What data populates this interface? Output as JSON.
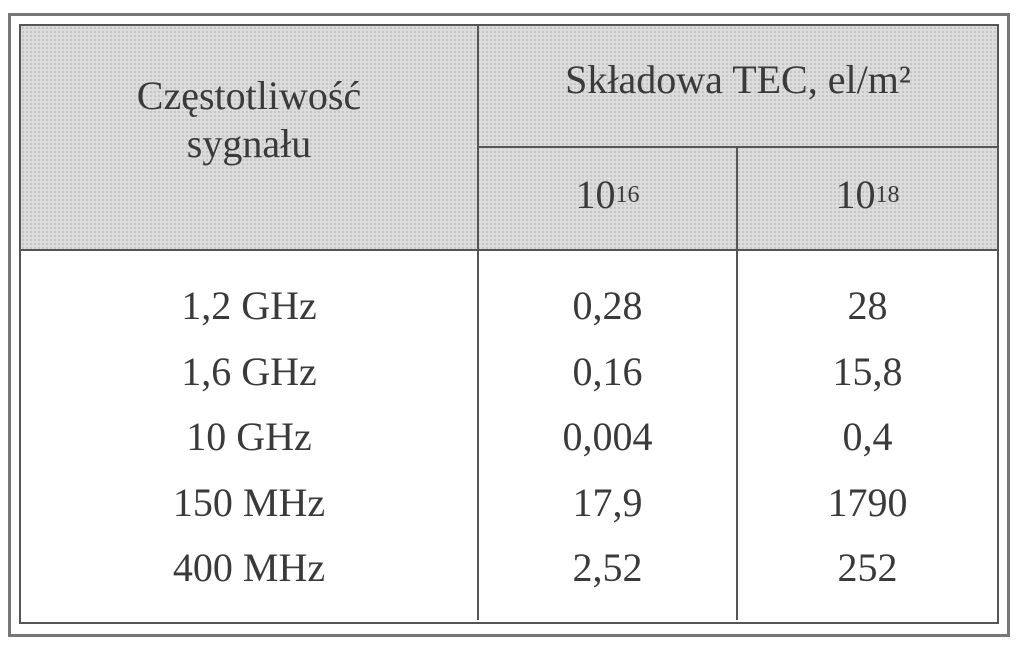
{
  "header": {
    "frequency": [
      "Częstotliwość",
      "sygnału"
    ],
    "group": "Składowa TEC, el/m²",
    "columns": [
      {
        "base": "10",
        "exponent": "16"
      },
      {
        "base": "10",
        "exponent": "18"
      }
    ]
  },
  "rows": [
    [
      "1,2 GHz",
      "0,28",
      "28"
    ],
    [
      "1,6 GHz",
      "0,16",
      "15,8"
    ],
    [
      "10 GHz",
      "0,004",
      "0,4"
    ],
    [
      "150 MHz",
      "17,9",
      "1790"
    ],
    [
      "400 MHz",
      "2,52",
      "252"
    ]
  ]
}
